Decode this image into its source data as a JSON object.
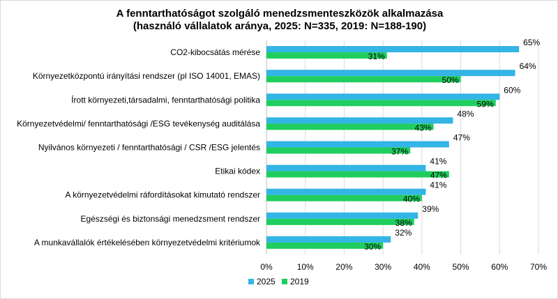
{
  "chart_data": {
    "type": "bar",
    "orientation": "horizontal",
    "title": "A fenntarthatóságot szolgáló menedzsmenteszközök alkalmazása",
    "subtitle": "(használó vállalatok aránya, 2025: N=335, 2019: N=188-190)",
    "xlabel": "",
    "ylabel": "",
    "xlim": [
      0,
      70
    ],
    "x_ticks": [
      "0%",
      "10%",
      "20%",
      "30%",
      "40%",
      "50%",
      "60%",
      "70%"
    ],
    "grid": true,
    "legend_position": "bottom",
    "categories": [
      "CO2-kibocsátás mérése",
      "Környezetközpontú irányítási rendszer (pl  ISO 14001, EMAS)",
      "Írott környezeti,társadalmi, fenntarthatósági politika",
      "Környezetvédelmi/ fenntarthatósági /ESG tevékenység auditálása",
      "Nyilvános környezeti / fenntarthatósági / CSR /ESG jelentés",
      "Etikai kódex",
      "A környezetvédelmi ráfordításokat kimutató rendszer",
      "Egészségi és biztonsági menedzsment rendszer",
      "A munkavállalók értékelésében környezetvédelmi kritériumok"
    ],
    "series": [
      {
        "name": "2025",
        "color": "#33B5E5",
        "values": [
          65,
          64,
          60,
          48,
          47,
          41,
          41,
          39,
          32
        ],
        "labels": [
          "65%",
          "64%",
          "60%",
          "48%",
          "47%",
          "41%",
          "41%",
          "39%",
          "32%"
        ]
      },
      {
        "name": "2019",
        "color": "#1FCE5E",
        "values": [
          31,
          50,
          59,
          43,
          37,
          47,
          40,
          38,
          30
        ],
        "labels": [
          "31%",
          "50%",
          "59%",
          "43%",
          "37%",
          "47%",
          "40%",
          "38%",
          "30%"
        ]
      }
    ]
  }
}
